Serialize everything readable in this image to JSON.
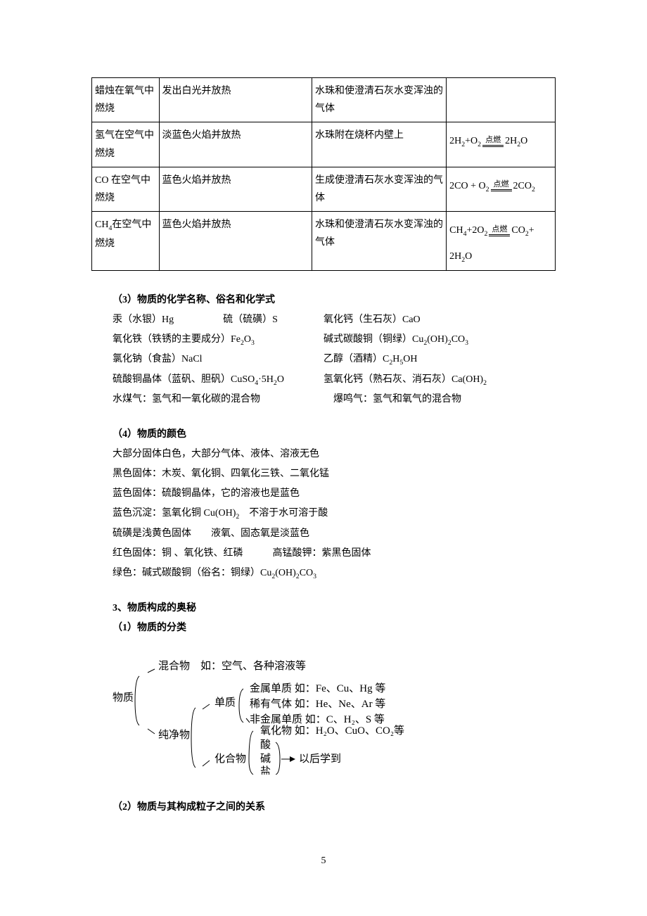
{
  "table": {
    "rows": [
      {
        "c1": "蜡烛在氧气中燃烧",
        "c2": "发出白光并放热",
        "c3": "水珠和使澄清石灰水变浑浊的气体",
        "eq": ""
      },
      {
        "c1": "氢气在空气中燃烧",
        "c2": "淡蓝色火焰并放热",
        "c3": "水珠附在烧杯内壁上",
        "eq_left": "2H₂+O₂",
        "eq_right": "2H₂O",
        "ignite": "点燃"
      },
      {
        "c1": "CO 在空气中燃烧",
        "c2": "蓝色火焰并放热",
        "c3": "生成使澄清石灰水变浑浊的气体",
        "eq_left": "2CO + O₂",
        "eq_right": "2CO₂",
        "ignite": "点燃"
      },
      {
        "c1": "CH₄在空气中燃烧",
        "c2": "蓝色火焰并放热",
        "c3": "水珠和使澄清石灰水变浑浊的气体",
        "eq_left": "CH₄+2O₂",
        "eq_right": "CO₂+",
        "eq_extra": "2H₂O",
        "ignite": "点燃"
      }
    ]
  },
  "s3": {
    "heading": "（3）物质的化学名称、俗名和化学式",
    "l1a": "汞（水银）Hg",
    "l1b": "硫（硫磺）S",
    "l1c": "氧化钙（生石灰）CaO",
    "l2a": "氧化铁（铁锈的主要成分）Fe₂O₃",
    "l2c": "碱式碳酸铜（铜绿）Cu₂(OH)₂CO₃",
    "l3a": "氯化钠（食盐）NaCl",
    "l3c": "乙醇（酒精）C₂H₅OH",
    "l4a": "硫酸铜晶体（蓝矾、胆矾）CuSO₄·5H₂O",
    "l4c": "氢氧化钙（熟石灰、消石灰）Ca(OH)₂",
    "l5a": "水煤气：氢气和一氧化碳的混合物",
    "l5c": "爆鸣气：氢气和氧气的混合物"
  },
  "s4": {
    "heading": "（4）物质的颜色",
    "l1": "大部分固体白色，大部分气体、液体、溶液无色",
    "l2": "黑色固体：木炭、氧化铜、四氧化三铁、二氧化锰",
    "l3": "蓝色固体：硫酸铜晶体，它的溶液也是蓝色",
    "l4": "蓝色沉淀：氢氧化铜 Cu(OH)₂　不溶于水可溶于酸",
    "l5": "硫磺是浅黄色固体　　液氧、固态氧是淡蓝色",
    "l6": "红色固体：铜 、氧化铁、红磷　　　高锰酸钾：紫黑色固体",
    "l7": "绿色：碱式碳酸铜（俗名：铜绿）Cu₂(OH)₂CO₃"
  },
  "s5": {
    "heading": "3、物质构成的奥秘",
    "sub_heading": "（1）物质的分类",
    "t_mix": "混合物　如：空气、各种溶液等",
    "t_root": "物质",
    "t_pure": "纯净物",
    "t_elem": "单质",
    "t_e1": "金属单质 如：Fe、Cu、Hg 等",
    "t_e2": "稀有气体 如：He、Ne、Ar 等",
    "t_e3": "非金属单质 如：C、H₂、S 等",
    "t_comp": "化合物",
    "t_c1": "氧化物 如：H₂O、CuO、CO₂等",
    "t_c2": "酸",
    "t_c3": "碱",
    "t_c4": "盐",
    "t_later": "以后学到"
  },
  "s6": {
    "heading": "（2）物质与其构成粒子之间的关系"
  },
  "page_number": "5"
}
